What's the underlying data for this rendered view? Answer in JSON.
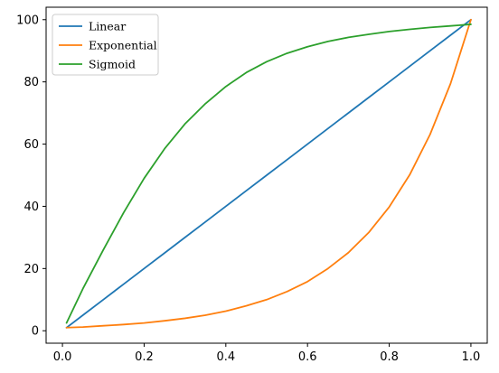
{
  "chart_data": {
    "type": "line",
    "title": "",
    "xlabel": "",
    "ylabel": "",
    "xlim": [
      -0.04,
      1.04
    ],
    "ylim": [
      -4,
      104
    ],
    "grid": false,
    "legend_position": "top-left",
    "x_ticks": [
      0.0,
      0.2,
      0.4,
      0.6,
      0.8,
      1.0
    ],
    "x_tick_labels": [
      "0.0",
      "0.2",
      "0.4",
      "0.6",
      "0.8",
      "1.0"
    ],
    "y_ticks": [
      0,
      20,
      40,
      60,
      80,
      100
    ],
    "y_tick_labels": [
      "0",
      "20",
      "40",
      "60",
      "80",
      "100"
    ],
    "x": [
      0.01,
      0.05,
      0.1,
      0.15,
      0.2,
      0.25,
      0.3,
      0.35,
      0.4,
      0.45,
      0.5,
      0.55,
      0.6,
      0.65,
      0.7,
      0.75,
      0.8,
      0.85,
      0.9,
      0.95,
      1.0
    ],
    "series": [
      {
        "name": "Linear",
        "color": "#1f77b4",
        "values": [
          1.0,
          5.0,
          10.0,
          15.0,
          20.0,
          25.0,
          30.0,
          35.0,
          40.0,
          45.0,
          50.0,
          55.0,
          60.0,
          65.0,
          70.0,
          75.0,
          80.0,
          85.0,
          90.0,
          95.0,
          100.0
        ]
      },
      {
        "name": "Exponential",
        "color": "#ff7f0e",
        "values": [
          1.0,
          1.2,
          1.6,
          2.0,
          2.5,
          3.2,
          4.0,
          5.0,
          6.3,
          8.0,
          10.0,
          12.6,
          15.8,
          20.0,
          25.1,
          31.6,
          39.8,
          50.1,
          63.1,
          79.4,
          100.0
        ]
      },
      {
        "name": "Sigmoid",
        "color": "#2ca02c",
        "values": [
          2.5,
          13.5,
          26.0,
          38.0,
          49.0,
          58.5,
          66.5,
          73.0,
          78.5,
          83.0,
          86.5,
          89.2,
          91.3,
          93.0,
          94.3,
          95.3,
          96.2,
          96.9,
          97.5,
          98.0,
          98.5
        ]
      }
    ]
  }
}
